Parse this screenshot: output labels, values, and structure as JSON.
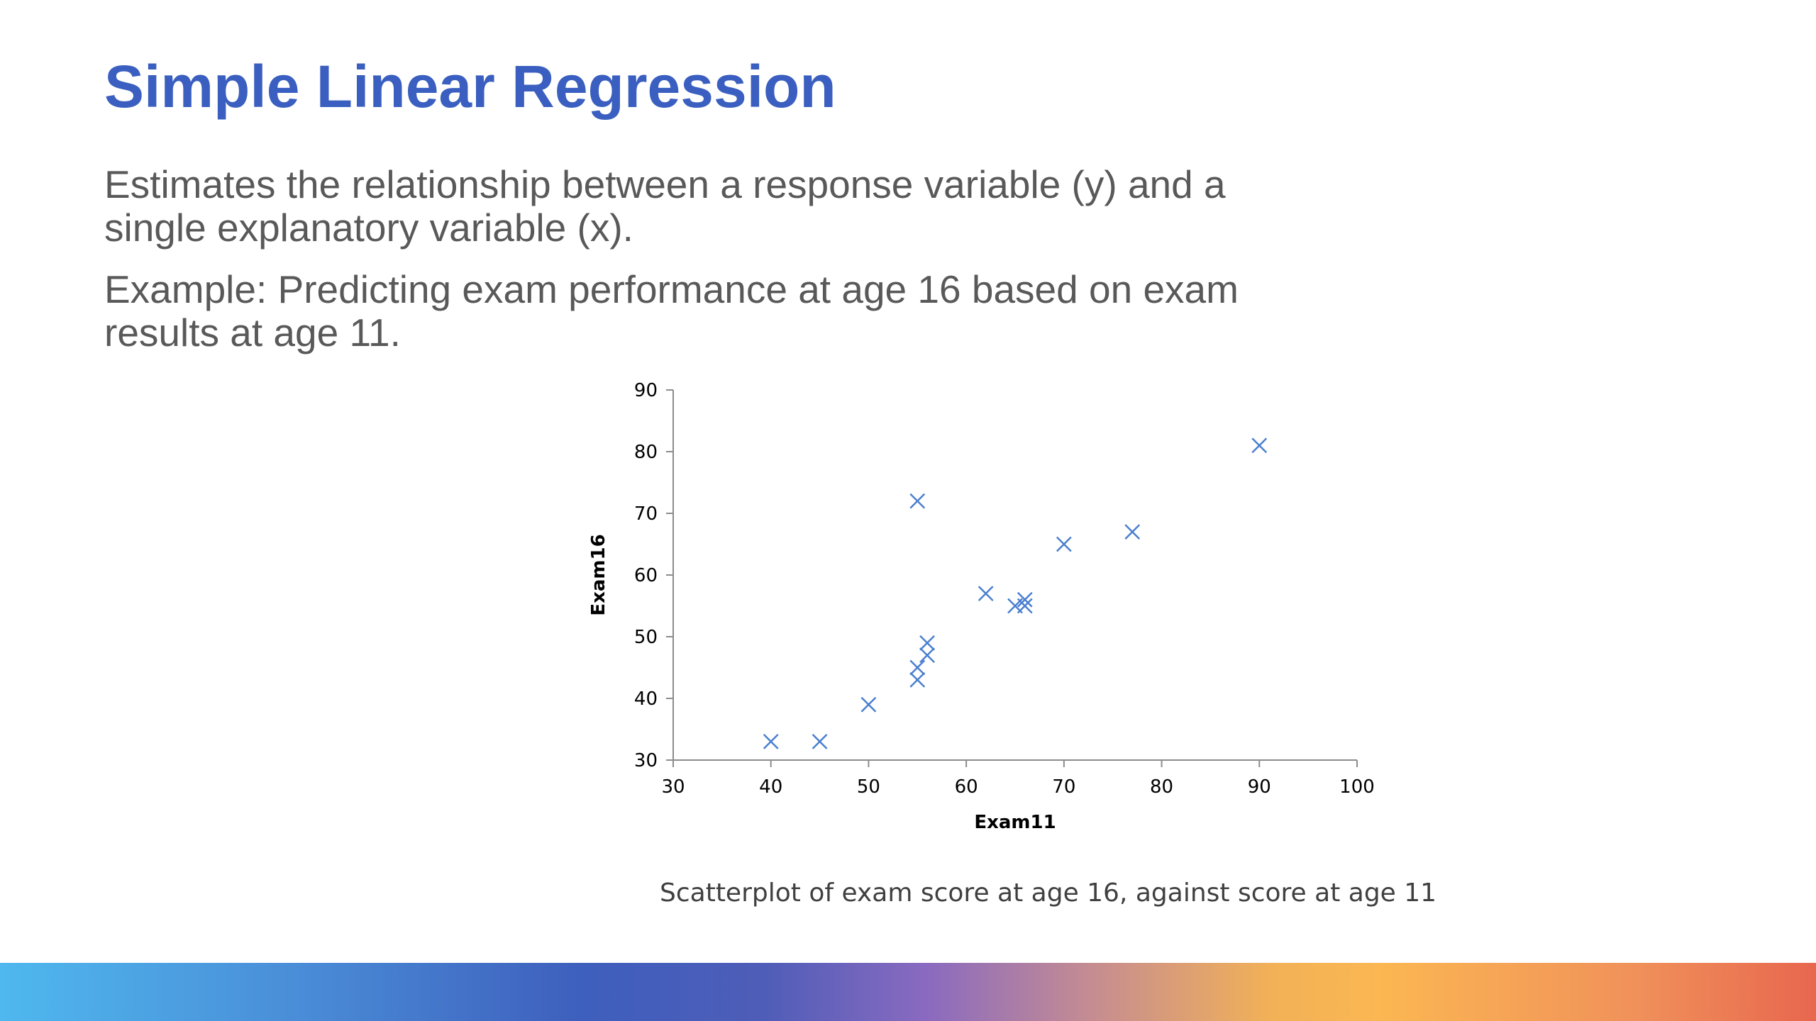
{
  "slide": {
    "title": "Simple Linear Regression",
    "paragraph_1": "Estimates the relationship between a response variable (y) and a single explanatory variable (x).",
    "paragraph_2": "Example: Predicting exam performance at age 16 based on exam results at age 11.",
    "caption": "Scatterplot of exam score at age 16, against score at age 11"
  },
  "colors": {
    "title": "#3a5fc0",
    "body_text": "#595959",
    "marker": "#4a7fcf",
    "axis": "#8c8c8c"
  },
  "chart_data": {
    "type": "scatter",
    "xlabel": "Exam11",
    "ylabel": "Exam16",
    "xlim": [
      30,
      100
    ],
    "ylim": [
      30,
      90
    ],
    "xticks": [
      30,
      40,
      50,
      60,
      70,
      80,
      90,
      100
    ],
    "yticks": [
      30,
      40,
      50,
      60,
      70,
      80,
      90
    ],
    "marker": "x",
    "grid": false,
    "legend": "none",
    "points": [
      {
        "x": 40,
        "y": 33
      },
      {
        "x": 45,
        "y": 33
      },
      {
        "x": 50,
        "y": 39
      },
      {
        "x": 55,
        "y": 43
      },
      {
        "x": 55,
        "y": 45
      },
      {
        "x": 55,
        "y": 72
      },
      {
        "x": 56,
        "y": 47
      },
      {
        "x": 56,
        "y": 49
      },
      {
        "x": 62,
        "y": 57
      },
      {
        "x": 65,
        "y": 55
      },
      {
        "x": 66,
        "y": 55
      },
      {
        "x": 66,
        "y": 56
      },
      {
        "x": 70,
        "y": 65
      },
      {
        "x": 77,
        "y": 67
      },
      {
        "x": 90,
        "y": 81
      }
    ]
  }
}
